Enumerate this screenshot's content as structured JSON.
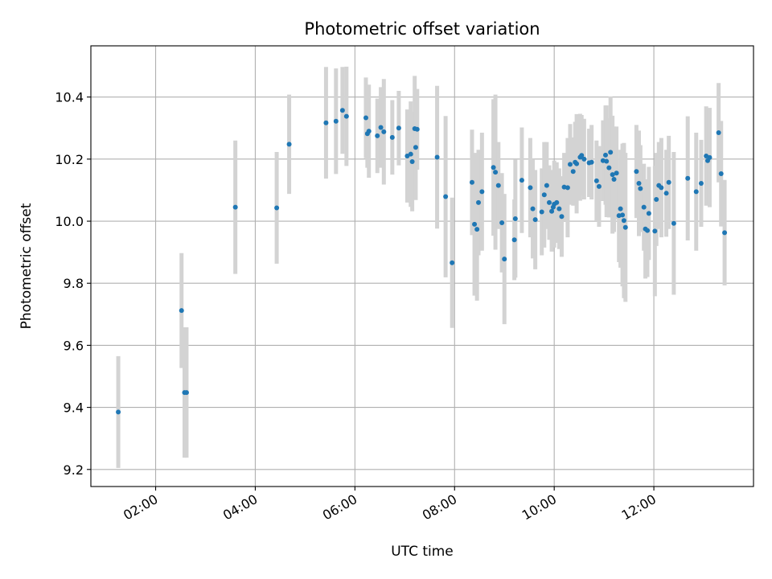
{
  "chart_data": {
    "type": "scatter",
    "title": "Photometric offset variation",
    "xlabel": "UTC time",
    "ylabel": "Photometric offset",
    "xlim": [
      0.7,
      14.0
    ],
    "ylim": [
      9.145,
      10.565
    ],
    "x_ticks": [
      2,
      4,
      6,
      8,
      10,
      12
    ],
    "x_tick_labels": [
      "02:00",
      "04:00",
      "06:00",
      "08:00",
      "10:00",
      "12:00"
    ],
    "y_ticks": [
      9.2,
      9.4,
      9.6,
      9.8,
      10.0,
      10.2,
      10.4
    ],
    "y_tick_labels": [
      "9.2",
      "9.4",
      "9.6",
      "9.8",
      "10.0",
      "10.2",
      "10.4"
    ],
    "grid": true,
    "colors": {
      "point": "#1f77b4",
      "errorbar": "#d3d3d3",
      "grid": "#b0b0b0",
      "axes": "#000000"
    },
    "series": [
      {
        "name": "offset",
        "x": [
          1.25,
          2.52,
          2.58,
          2.62,
          3.6,
          4.43,
          4.68,
          5.42,
          5.62,
          5.75,
          5.83,
          6.22,
          6.25,
          6.28,
          6.45,
          6.52,
          6.58,
          6.75,
          6.88,
          7.05,
          7.12,
          7.15,
          7.2,
          7.22,
          7.25,
          7.65,
          7.82,
          7.95,
          8.35,
          8.4,
          8.45,
          8.48,
          8.55,
          8.78,
          8.82,
          8.88,
          8.95,
          9.0,
          9.2,
          9.22,
          9.35,
          9.52,
          9.57,
          9.62,
          9.75,
          9.8,
          9.85,
          9.9,
          9.95,
          9.98,
          10.0,
          10.05,
          10.1,
          10.15,
          10.2,
          10.27,
          10.32,
          10.38,
          10.42,
          10.45,
          10.52,
          10.55,
          10.6,
          10.7,
          10.75,
          10.85,
          10.9,
          10.98,
          11.03,
          11.05,
          11.1,
          11.13,
          11.17,
          11.2,
          11.25,
          11.3,
          11.33,
          11.37,
          11.4,
          11.43,
          11.65,
          11.7,
          11.73,
          11.8,
          11.83,
          11.87,
          11.9,
          12.02,
          12.05,
          12.1,
          12.15,
          12.25,
          12.3,
          12.4,
          12.68,
          12.85,
          12.95,
          13.05,
          13.08,
          13.12,
          13.3,
          13.35,
          13.42
        ],
        "y": [
          9.385,
          9.712,
          9.448,
          9.448,
          10.045,
          10.043,
          10.248,
          10.317,
          10.322,
          10.357,
          10.338,
          10.333,
          10.282,
          10.29,
          10.275,
          10.302,
          10.288,
          10.27,
          10.3,
          10.21,
          10.216,
          10.192,
          10.298,
          10.238,
          10.296,
          10.206,
          10.079,
          9.866,
          10.125,
          9.99,
          9.974,
          10.06,
          10.095,
          10.173,
          10.158,
          10.115,
          9.995,
          9.878,
          9.94,
          10.008,
          10.132,
          10.108,
          10.04,
          10.005,
          10.03,
          10.085,
          10.115,
          10.06,
          10.032,
          10.045,
          10.055,
          10.06,
          10.04,
          10.015,
          10.11,
          10.108,
          10.183,
          10.16,
          10.19,
          10.185,
          10.206,
          10.212,
          10.2,
          10.188,
          10.19,
          10.13,
          10.112,
          10.195,
          10.213,
          10.193,
          10.172,
          10.222,
          10.15,
          10.135,
          10.155,
          10.018,
          10.04,
          10.02,
          10.002,
          9.98,
          10.16,
          10.122,
          10.105,
          10.045,
          9.975,
          9.97,
          10.025,
          9.968,
          10.07,
          10.115,
          10.108,
          10.09,
          10.125,
          9.993,
          10.138,
          10.095,
          10.122,
          10.21,
          10.195,
          10.205,
          10.285,
          10.153,
          9.963
        ],
        "err": [
          0.18,
          0.185,
          0.21,
          0.21,
          0.215,
          0.18,
          0.16,
          0.18,
          0.17,
          0.14,
          0.16,
          0.13,
          0.11,
          0.15,
          0.12,
          0.13,
          0.17,
          0.12,
          0.12,
          0.15,
          0.17,
          0.16,
          0.17,
          0.17,
          0.13,
          0.23,
          0.26,
          0.21,
          0.17,
          0.23,
          0.23,
          0.17,
          0.19,
          0.22,
          0.25,
          0.14,
          0.16,
          0.21,
          0.13,
          0.19,
          0.17,
          0.16,
          0.16,
          0.16,
          0.14,
          0.17,
          0.14,
          0.12,
          0.13,
          0.12,
          0.14,
          0.13,
          0.13,
          0.13,
          0.11,
          0.16,
          0.13,
          0.11,
          0.13,
          0.16,
          0.14,
          0.13,
          0.13,
          0.11,
          0.12,
          0.13,
          0.13,
          0.13,
          0.16,
          0.18,
          0.16,
          0.18,
          0.19,
          0.17,
          0.15,
          0.15,
          0.19,
          0.23,
          0.25,
          0.24,
          0.15,
          0.17,
          0.14,
          0.14,
          0.16,
          0.15,
          0.15,
          0.21,
          0.15,
          0.14,
          0.16,
          0.14,
          0.15,
          0.23,
          0.2,
          0.19,
          0.14,
          0.16,
          0.11,
          0.16,
          0.16,
          0.17,
          0.17
        ]
      }
    ]
  }
}
